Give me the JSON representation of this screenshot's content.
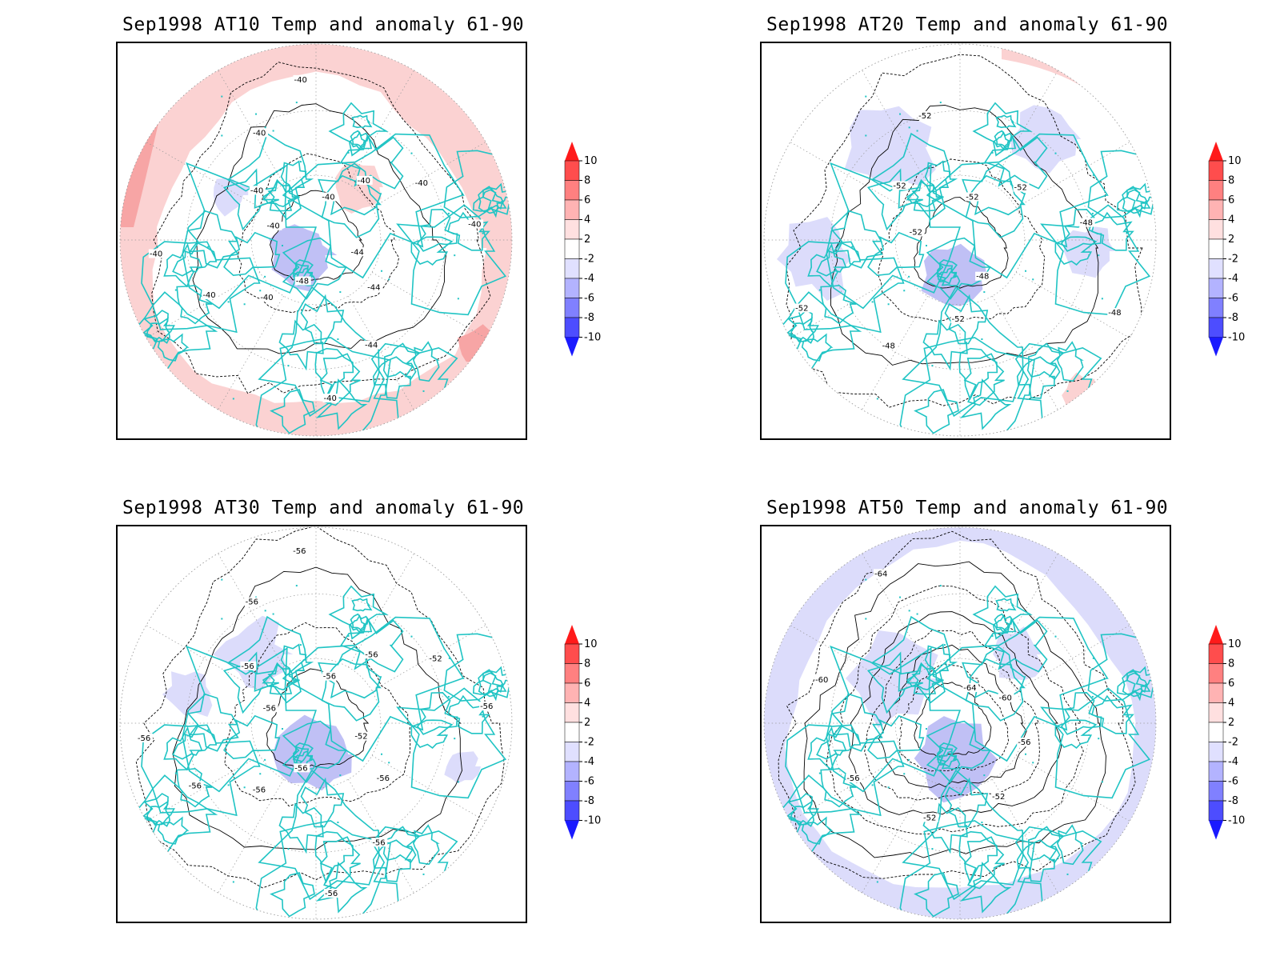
{
  "panels": [
    {
      "title": "Sep1998 AT10 Temp and anomaly 61-90",
      "contour_labels": [
        "-40",
        "-40",
        "-40",
        "-40",
        "-44",
        "-44",
        "-44",
        "-40",
        "-48",
        "-40",
        "-40",
        "-40",
        "-40",
        "-40",
        "-40",
        "-40"
      ],
      "anomaly_sign": "warm"
    },
    {
      "title": "Sep1998 AT20 Temp and anomaly 61-90",
      "contour_labels": [
        "-52",
        "-52",
        "-48",
        "-48",
        "-48",
        "-52",
        "-48",
        "-52",
        "-52",
        "-52",
        "-52"
      ],
      "anomaly_sign": "cool"
    },
    {
      "title": "Sep1998 AT30 Temp and anomaly 61-90",
      "contour_labels": [
        "-56",
        "-56",
        "-52",
        "-56",
        "-52",
        "-56",
        "-56",
        "-56",
        "-56",
        "-56",
        "-56",
        "-56",
        "-56",
        "-56",
        "-56",
        "-56"
      ],
      "anomaly_sign": "cool"
    },
    {
      "title": "Sep1998 AT50 Temp and anomaly 61-90",
      "contour_labels": [
        "-64",
        "-60",
        "-56",
        "-52",
        "-52",
        "-56",
        "-60",
        "-64"
      ],
      "anomaly_sign": "cool"
    }
  ],
  "colorbar": {
    "labels": [
      "10",
      "8",
      "6",
      "4",
      "2",
      "-2",
      "-4",
      "-6",
      "-8",
      "-10"
    ],
    "colors": [
      "#ff1a1a",
      "#ff4d4d",
      "#ff8080",
      "#ffb3b3",
      "#ffe0e0",
      "#ffffff",
      "#e0e0ff",
      "#b3b3ff",
      "#8080ff",
      "#4d4dff",
      "#1a1aff"
    ]
  },
  "colors": {
    "coastline": "#20c4c4",
    "warm_anomaly_light": "#fbd2d2",
    "warm_anomaly_medium": "#f7a5a5",
    "cool_anomaly_light": "#dcdcfb",
    "cool_anomaly_medium": "#c0c0f5",
    "contour": "#000000",
    "grid": "#999999"
  }
}
